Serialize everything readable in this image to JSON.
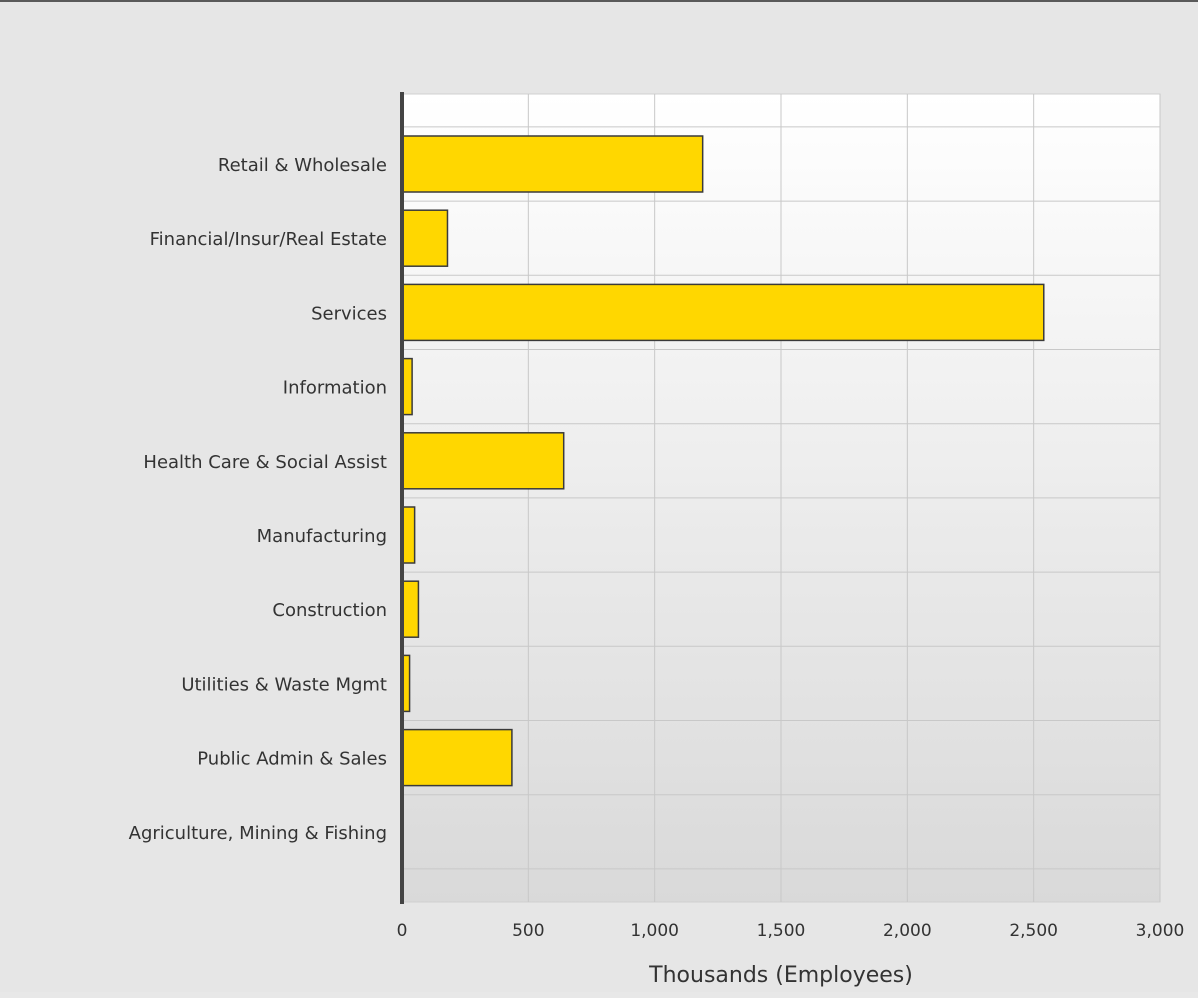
{
  "chart_data": {
    "type": "bar",
    "orientation": "horizontal",
    "categories": [
      "Retail & Wholesale",
      "Financial/Insur/Real Estate",
      "Services",
      "Information",
      "Health Care & Social Assist",
      "Manufacturing",
      "Construction",
      "Utilities & Waste Mgmt",
      "Public Admin & Sales",
      "Agriculture, Mining & Fishing"
    ],
    "values": [
      1190,
      180,
      2540,
      40,
      640,
      50,
      65,
      30,
      435,
      0
    ],
    "title": "",
    "xlabel": "Thousands (Employees)",
    "ylabel": "",
    "xlim": [
      0,
      3000
    ],
    "xticks": [
      0,
      500,
      1000,
      1500,
      2000,
      2500,
      3000
    ],
    "xtick_labels": [
      "0",
      "500",
      "1,000",
      "1,500",
      "2,000",
      "2,500",
      "3,000"
    ],
    "grid": true,
    "legend": "none",
    "colors": {
      "bar_fill": "#ffd700",
      "bar_stroke": "#3a3a3a",
      "grid": "#c8c8c8",
      "axis": "#444444",
      "text": "#333333"
    }
  }
}
